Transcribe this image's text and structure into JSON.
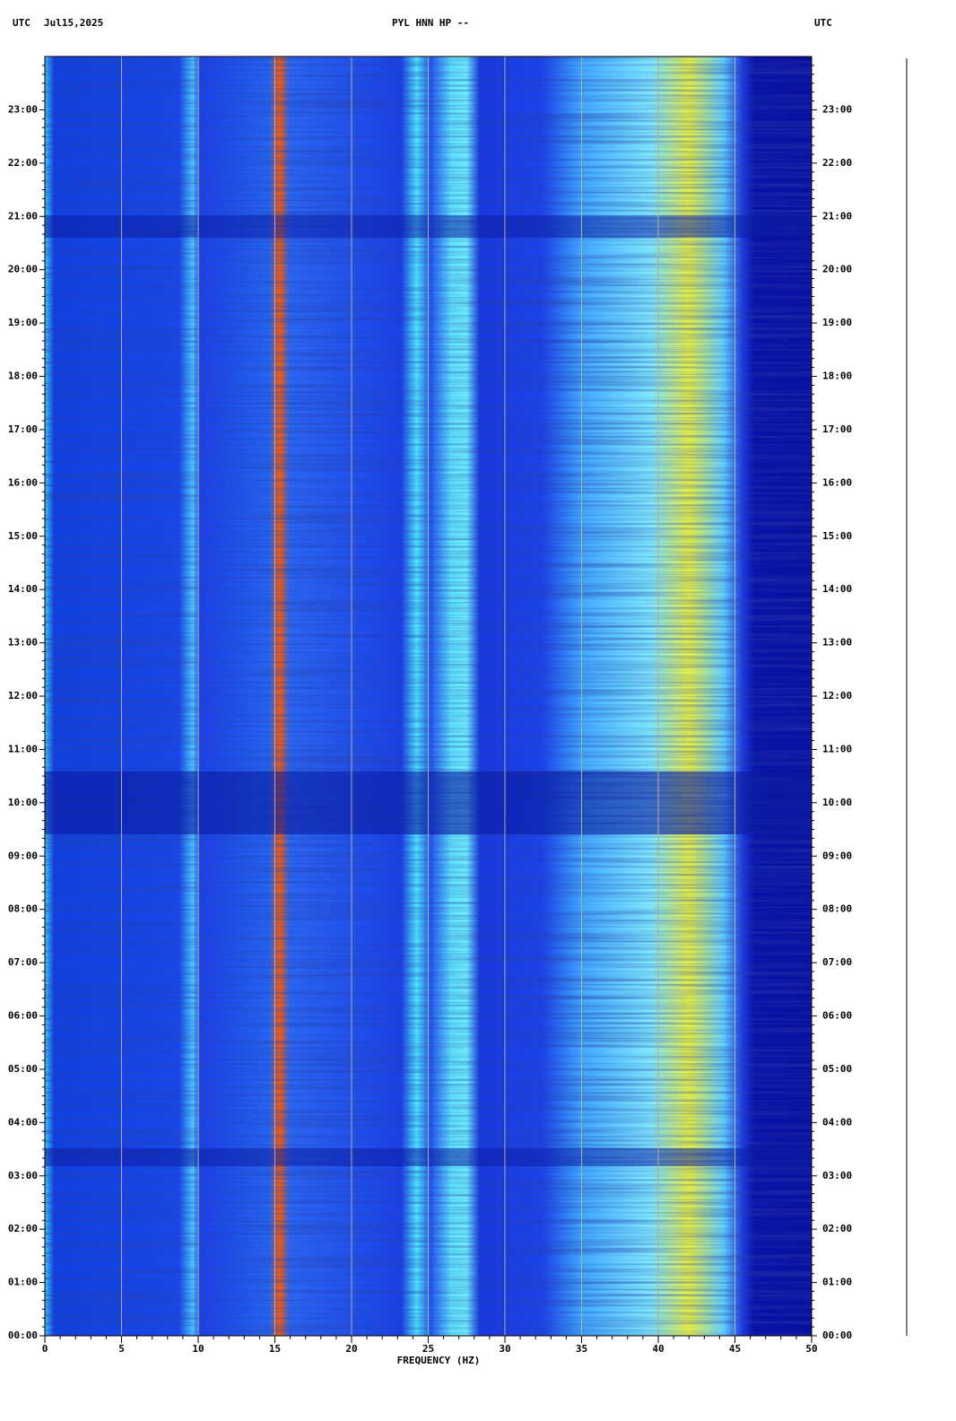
{
  "chart_data": {
    "type": "spectrogram",
    "header_left": "UTC",
    "date": "Jul15,2025",
    "title": "PYL HNN HP --",
    "header_right": "UTC",
    "xlabel": "FREQUENCY (HZ)",
    "xlim": [
      0,
      50
    ],
    "xticks": [
      0,
      5,
      10,
      15,
      20,
      25,
      30,
      35,
      40,
      45,
      50
    ],
    "grid": true,
    "ylim": [
      0,
      24
    ],
    "yticks": [
      {
        "value": 0,
        "label": "00:00"
      },
      {
        "value": 1,
        "label": "01:00"
      },
      {
        "value": 2,
        "label": "02:00"
      },
      {
        "value": 3,
        "label": "03:00"
      },
      {
        "value": 4,
        "label": "04:00"
      },
      {
        "value": 5,
        "label": "05:00"
      },
      {
        "value": 6,
        "label": "06:00"
      },
      {
        "value": 7,
        "label": "07:00"
      },
      {
        "value": 8,
        "label": "08:00"
      },
      {
        "value": 9,
        "label": "09:00"
      },
      {
        "value": 10,
        "label": "10:00"
      },
      {
        "value": 11,
        "label": "11:00"
      },
      {
        "value": 12,
        "label": "12:00"
      },
      {
        "value": 13,
        "label": "13:00"
      },
      {
        "value": 14,
        "label": "14:00"
      },
      {
        "value": 15,
        "label": "15:00"
      },
      {
        "value": 16,
        "label": "16:00"
      },
      {
        "value": 17,
        "label": "17:00"
      },
      {
        "value": 18,
        "label": "18:00"
      },
      {
        "value": 19,
        "label": "19:00"
      },
      {
        "value": 20,
        "label": "20:00"
      },
      {
        "value": 21,
        "label": "21:00"
      },
      {
        "value": 22,
        "label": "22:00"
      },
      {
        "value": 23,
        "label": "23:00"
      }
    ]
  }
}
